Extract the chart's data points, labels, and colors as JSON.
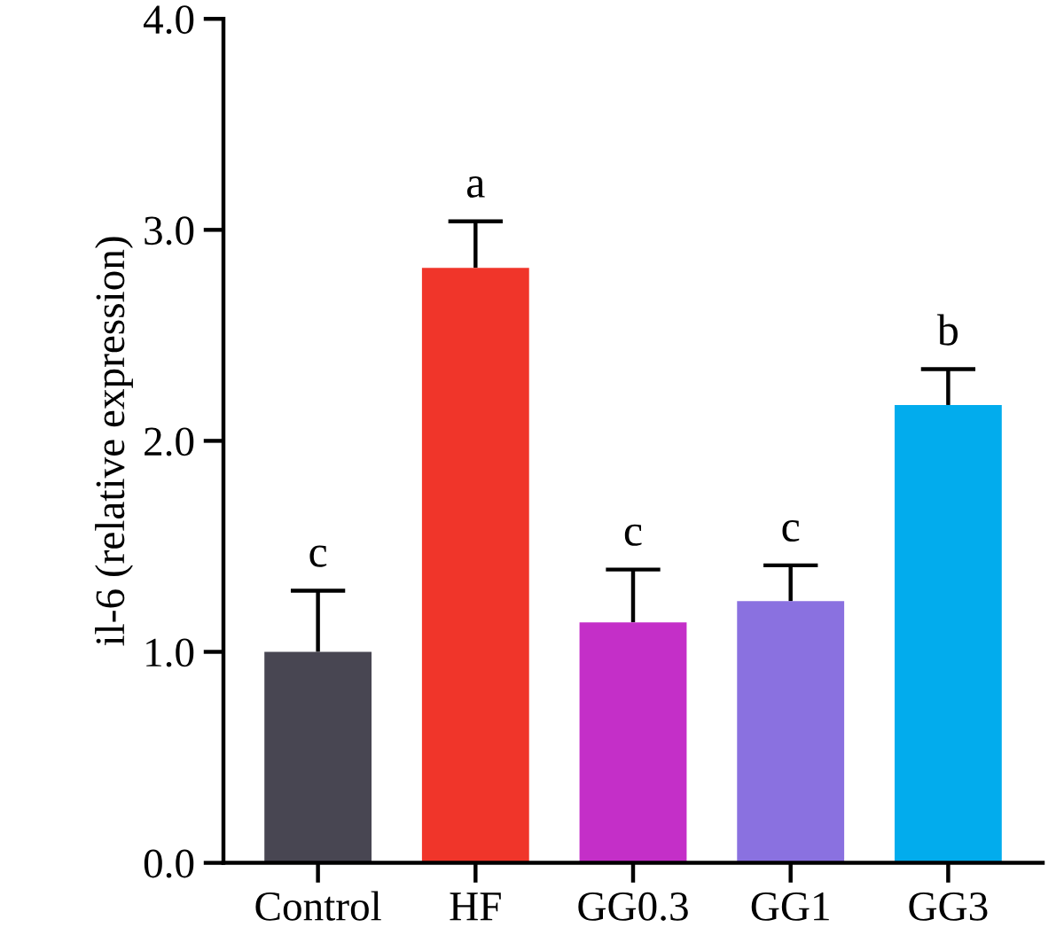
{
  "chart_data": {
    "type": "bar",
    "ylabel": "il-6 (relative expression)",
    "categories": [
      "Control",
      "HF",
      "GG0.3",
      "GG1",
      "GG3"
    ],
    "values": [
      1.0,
      2.82,
      1.14,
      1.24,
      2.17
    ],
    "colors": [
      "#484652",
      "#f0352a",
      "#c42fc8",
      "#8a71e0",
      "#02aced"
    ],
    "errors": [
      [
        1.0,
        1.29
      ],
      [
        2.82,
        3.04
      ],
      [
        1.14,
        1.39
      ],
      [
        1.24,
        1.41
      ],
      [
        2.17,
        2.34
      ]
    ],
    "ylim": [
      0,
      4
    ],
    "yticks": [
      {
        "value": 0,
        "label": "0.0"
      },
      {
        "value": 1,
        "label": "1.0"
      },
      {
        "value": 2,
        "label": "2.0"
      },
      {
        "value": 3,
        "label": "3.0"
      },
      {
        "value": 4,
        "label": "4.0"
      }
    ],
    "annotations": [
      {
        "text": "c",
        "x": "Control",
        "y": 1.29
      },
      {
        "text": "a",
        "x": "HF",
        "y": 3.04
      },
      {
        "text": "c",
        "x": "GG0.3",
        "y": 1.39
      },
      {
        "text": "c",
        "x": "GG1",
        "y": 1.41
      },
      {
        "text": "b",
        "x": "GG3",
        "y": 2.34
      }
    ],
    "grid": false
  }
}
